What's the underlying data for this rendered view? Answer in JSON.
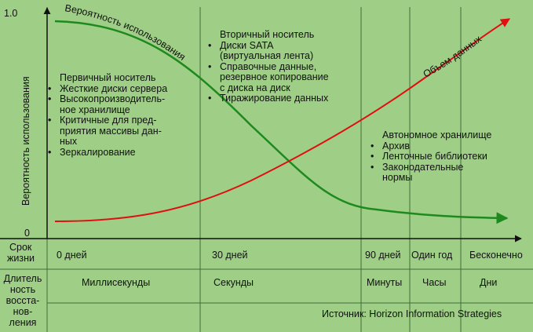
{
  "axes": {
    "y_max_label": "1.0",
    "y_min_label": "0",
    "y_axis_title": "Вероятность использования"
  },
  "curve_labels": {
    "green": "Вероятность использования",
    "red": "Объем данных"
  },
  "row_lifetime": {
    "header_line1": "Срок",
    "header_line2": "жизни",
    "ticks": [
      "0 дней",
      "30 дней",
      "90 дней",
      "Один год",
      "Бесконечно"
    ]
  },
  "row_recovery": {
    "header_lines": [
      "Длитель",
      "ность",
      "восста-",
      "нов-",
      "ления"
    ],
    "ticks": [
      "Миллисекунды",
      "Секунды",
      "Минуты",
      "Часы",
      "Дни"
    ]
  },
  "primary": {
    "title": "Первичный носитель",
    "items": [
      "Жесткие диски сервера",
      "Высокопроизводитель-\nное хранилище",
      "Критичные для пред-\nприятия массивы дан-\nных",
      "Зеркалирование"
    ]
  },
  "secondary": {
    "title": "Вторичный носитель",
    "items": [
      "Диски SATA\n(виртуальная лента)",
      "Справочные данные,\nрезервное копирование\nс диска на диск",
      "Тиражирование данных"
    ]
  },
  "offline": {
    "title": "Автономное хранилище",
    "items": [
      "Архив",
      "Ленточные библиотеки",
      "Законодательные\nнормы"
    ]
  },
  "source": "Источник: Horizon Information Strategies",
  "colors": {
    "background": "#9fcf87",
    "green_curve": "#1e8a1e",
    "red_curve": "#e01010",
    "axis": "#111111"
  }
}
